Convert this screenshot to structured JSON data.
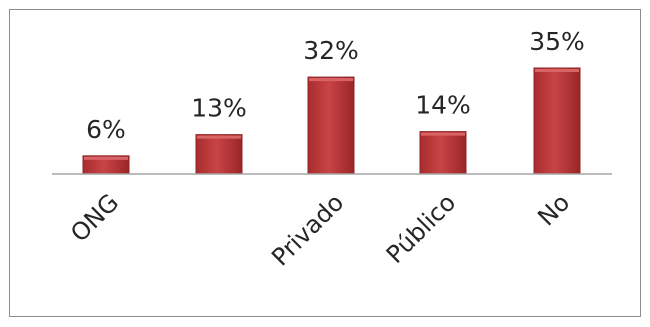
{
  "chart_data": {
    "type": "bar",
    "title": "",
    "xlabel": "",
    "ylabel": "",
    "categories": [
      "ONG",
      "",
      "Privado",
      "Público",
      "No"
    ],
    "values": [
      6,
      13,
      32,
      14,
      35
    ],
    "data_labels": [
      "6%",
      "13%",
      "32%",
      "14%",
      "35%"
    ],
    "ylim": [
      0,
      35
    ],
    "grid": false,
    "legend": "none",
    "colors": {
      "bar": "#c0393b",
      "bar_dark": "#8e2324",
      "bar_light": "#d96466",
      "axis": "#a6a6a6"
    }
  }
}
